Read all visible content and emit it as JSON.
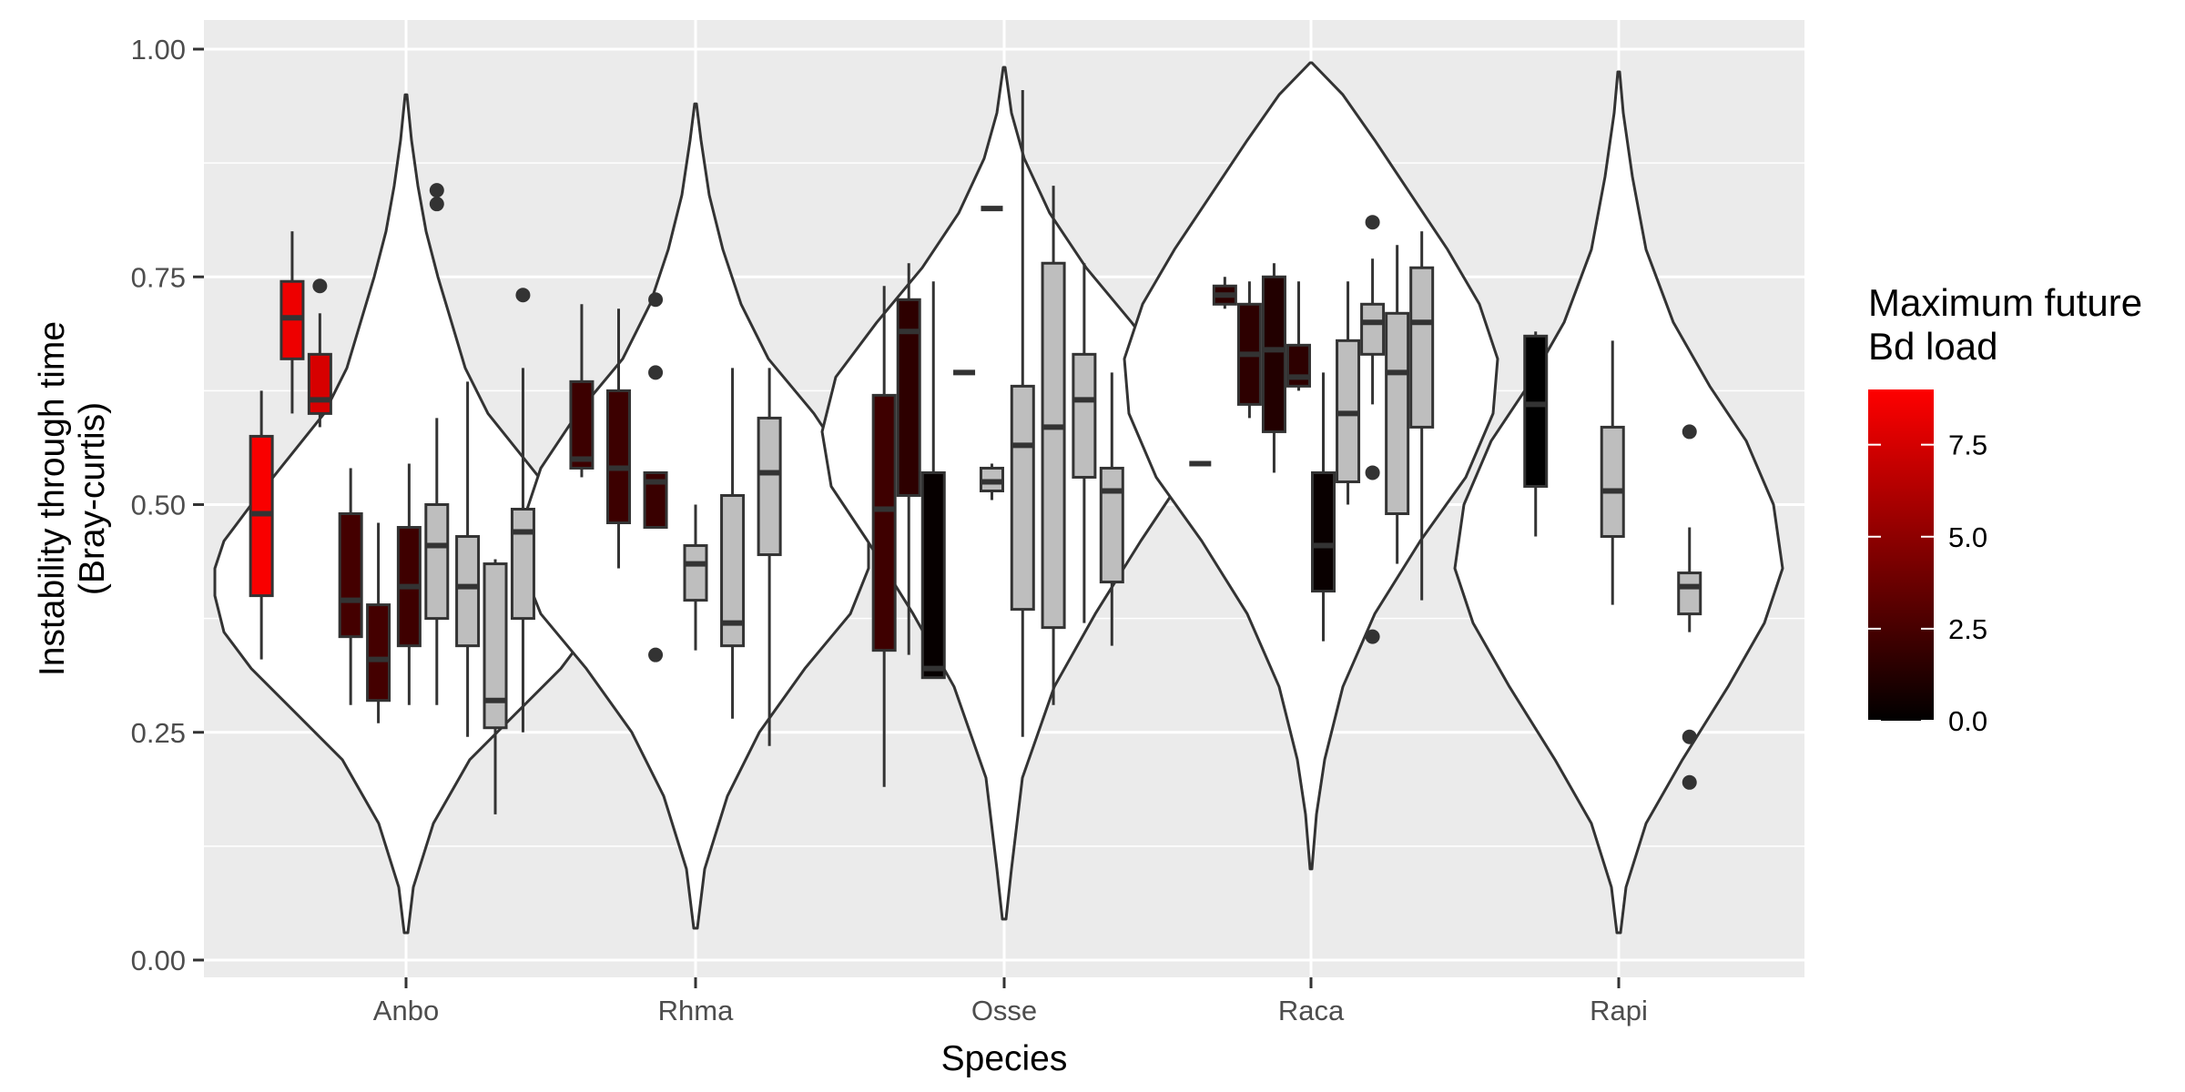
{
  "chart_data": {
    "type": "boxplot-violin",
    "xlabel": "Species",
    "ylabel_line1": "Instability through time",
    "ylabel_line2": "(Bray-curtis)",
    "ylim": [
      0,
      1
    ],
    "y_ticks": [
      "0.00",
      "0.25",
      "0.50",
      "0.75",
      "1.00"
    ],
    "y_tick_values": [
      0,
      0.25,
      0.5,
      0.75,
      1.0
    ],
    "categories": [
      "Anbo",
      "Rhma",
      "Osse",
      "Raca",
      "Rapi"
    ],
    "legend": {
      "title_line1": "Maximum future",
      "title_line2": "Bd load",
      "labels": [
        "7.5",
        "5.0",
        "2.5",
        "0.0"
      ],
      "label_values": [
        7.5,
        5.0,
        2.5,
        0.0
      ],
      "range": [
        0,
        9
      ],
      "color_low": "#000000",
      "color_high": "#ff0000"
    },
    "colors": {
      "panel": "#ebebeb",
      "grid": "#ffffff",
      "no_data_fill": "#bebebe",
      "line": "#333333"
    },
    "grid": true,
    "legend_position": "right",
    "violins": [
      {
        "category": "Anbo",
        "min": 0.03,
        "max": 0.95,
        "profile": [
          [
            0.03,
            0.002
          ],
          [
            0.08,
            0.008
          ],
          [
            0.15,
            0.03
          ],
          [
            0.22,
            0.07
          ],
          [
            0.27,
            0.12
          ],
          [
            0.32,
            0.17
          ],
          [
            0.36,
            0.2
          ],
          [
            0.4,
            0.21
          ],
          [
            0.43,
            0.21
          ],
          [
            0.46,
            0.2
          ],
          [
            0.5,
            0.17
          ],
          [
            0.55,
            0.13
          ],
          [
            0.6,
            0.09
          ],
          [
            0.65,
            0.065
          ],
          [
            0.7,
            0.05
          ],
          [
            0.75,
            0.035
          ],
          [
            0.8,
            0.022
          ],
          [
            0.85,
            0.013
          ],
          [
            0.9,
            0.006
          ],
          [
            0.95,
            0.001
          ]
        ]
      },
      {
        "category": "Rhma",
        "min": 0.035,
        "max": 0.94,
        "profile": [
          [
            0.035,
            0.002
          ],
          [
            0.1,
            0.01
          ],
          [
            0.18,
            0.035
          ],
          [
            0.25,
            0.07
          ],
          [
            0.32,
            0.12
          ],
          [
            0.38,
            0.17
          ],
          [
            0.43,
            0.19
          ],
          [
            0.48,
            0.19
          ],
          [
            0.54,
            0.17
          ],
          [
            0.6,
            0.13
          ],
          [
            0.66,
            0.08
          ],
          [
            0.72,
            0.05
          ],
          [
            0.78,
            0.03
          ],
          [
            0.84,
            0.015
          ],
          [
            0.9,
            0.006
          ],
          [
            0.94,
            0.001
          ]
        ]
      },
      {
        "category": "Osse",
        "min": 0.045,
        "max": 0.98,
        "profile": [
          [
            0.045,
            0.002
          ],
          [
            0.1,
            0.008
          ],
          [
            0.2,
            0.02
          ],
          [
            0.3,
            0.055
          ],
          [
            0.38,
            0.1
          ],
          [
            0.46,
            0.15
          ],
          [
            0.52,
            0.19
          ],
          [
            0.58,
            0.2
          ],
          [
            0.64,
            0.185
          ],
          [
            0.7,
            0.14
          ],
          [
            0.76,
            0.09
          ],
          [
            0.82,
            0.05
          ],
          [
            0.88,
            0.022
          ],
          [
            0.93,
            0.008
          ],
          [
            0.98,
            0.001
          ]
        ]
      },
      {
        "category": "Raca",
        "min": 0.1,
        "max": 0.985,
        "profile": [
          [
            0.1,
            0.001
          ],
          [
            0.16,
            0.006
          ],
          [
            0.22,
            0.015
          ],
          [
            0.3,
            0.035
          ],
          [
            0.38,
            0.07
          ],
          [
            0.46,
            0.12
          ],
          [
            0.53,
            0.17
          ],
          [
            0.6,
            0.2
          ],
          [
            0.66,
            0.205
          ],
          [
            0.72,
            0.185
          ],
          [
            0.78,
            0.15
          ],
          [
            0.84,
            0.11
          ],
          [
            0.9,
            0.07
          ],
          [
            0.95,
            0.035
          ],
          [
            0.985,
            0.001
          ]
        ]
      },
      {
        "category": "Rapi",
        "min": 0.03,
        "max": 0.975,
        "profile": [
          [
            0.03,
            0.002
          ],
          [
            0.08,
            0.008
          ],
          [
            0.15,
            0.03
          ],
          [
            0.22,
            0.07
          ],
          [
            0.3,
            0.12
          ],
          [
            0.37,
            0.16
          ],
          [
            0.43,
            0.18
          ],
          [
            0.5,
            0.17
          ],
          [
            0.57,
            0.14
          ],
          [
            0.63,
            0.1
          ],
          [
            0.7,
            0.06
          ],
          [
            0.78,
            0.03
          ],
          [
            0.86,
            0.015
          ],
          [
            0.93,
            0.005
          ],
          [
            0.975,
            0.001
          ]
        ]
      }
    ],
    "boxes": [
      {
        "category": "Anbo",
        "offset": -0.47,
        "load": 8.8,
        "min": 0.33,
        "q1": 0.4,
        "median": 0.49,
        "q3": 0.575,
        "max": 0.625,
        "outliers": []
      },
      {
        "category": "Anbo",
        "offset": -0.37,
        "load": 8.4,
        "min": 0.6,
        "q1": 0.66,
        "median": 0.705,
        "q3": 0.745,
        "max": 0.8,
        "outliers": []
      },
      {
        "category": "Anbo",
        "offset": -0.28,
        "load": 7.6,
        "min": 0.585,
        "q1": 0.6,
        "median": 0.615,
        "q3": 0.665,
        "max": 0.71,
        "outliers": [
          0.74
        ]
      },
      {
        "category": "Anbo",
        "offset": -0.18,
        "load": 2.4,
        "min": 0.28,
        "q1": 0.355,
        "median": 0.395,
        "q3": 0.49,
        "max": 0.54,
        "outliers": []
      },
      {
        "category": "Anbo",
        "offset": -0.09,
        "load": 2.4,
        "min": 0.26,
        "q1": 0.285,
        "median": 0.33,
        "q3": 0.39,
        "max": 0.48,
        "outliers": []
      },
      {
        "category": "Anbo",
        "offset": 0.01,
        "load": 2.2,
        "min": 0.28,
        "q1": 0.345,
        "median": 0.41,
        "q3": 0.475,
        "max": 0.545,
        "outliers": []
      },
      {
        "category": "Anbo",
        "offset": 0.1,
        "load": null,
        "min": 0.28,
        "q1": 0.375,
        "median": 0.455,
        "q3": 0.5,
        "max": 0.595,
        "outliers": [
          0.845,
          0.83
        ]
      },
      {
        "category": "Anbo",
        "offset": 0.2,
        "load": null,
        "min": 0.245,
        "q1": 0.345,
        "median": 0.41,
        "q3": 0.465,
        "max": 0.635,
        "outliers": []
      },
      {
        "category": "Anbo",
        "offset": 0.29,
        "load": null,
        "min": 0.16,
        "q1": 0.255,
        "median": 0.285,
        "q3": 0.435,
        "max": 0.44,
        "outliers": []
      },
      {
        "category": "Anbo",
        "offset": 0.38,
        "load": null,
        "min": 0.25,
        "q1": 0.375,
        "median": 0.47,
        "q3": 0.495,
        "max": 0.65,
        "outliers": [
          0.73
        ]
      },
      {
        "category": "Rhma",
        "offset": -0.37,
        "load": 2.1,
        "min": 0.53,
        "q1": 0.54,
        "median": 0.55,
        "q3": 0.635,
        "max": 0.72,
        "outliers": []
      },
      {
        "category": "Rhma",
        "offset": -0.25,
        "load": 2.1,
        "min": 0.43,
        "q1": 0.48,
        "median": 0.54,
        "q3": 0.625,
        "max": 0.715,
        "outliers": []
      },
      {
        "category": "Rhma",
        "offset": -0.13,
        "load": 2.0,
        "min": 0.475,
        "q1": 0.475,
        "median": 0.525,
        "q3": 0.535,
        "max": 0.535,
        "outliers": [
          0.335,
          0.725,
          0.645
        ]
      },
      {
        "category": "Rhma",
        "offset": 0.0,
        "load": null,
        "min": 0.34,
        "q1": 0.395,
        "median": 0.435,
        "q3": 0.455,
        "max": 0.5,
        "outliers": []
      },
      {
        "category": "Rhma",
        "offset": 0.12,
        "load": null,
        "min": 0.265,
        "q1": 0.345,
        "median": 0.37,
        "q3": 0.51,
        "max": 0.65,
        "outliers": []
      },
      {
        "category": "Rhma",
        "offset": 0.24,
        "load": null,
        "min": 0.235,
        "q1": 0.445,
        "median": 0.535,
        "q3": 0.595,
        "max": 0.65,
        "outliers": []
      },
      {
        "category": "Osse",
        "offset": -0.39,
        "load": 2.2,
        "min": 0.19,
        "q1": 0.34,
        "median": 0.495,
        "q3": 0.62,
        "max": 0.74,
        "outliers": []
      },
      {
        "category": "Osse",
        "offset": -0.31,
        "load": 1.6,
        "min": 0.335,
        "q1": 0.51,
        "median": 0.69,
        "q3": 0.725,
        "max": 0.765,
        "outliers": []
      },
      {
        "category": "Osse",
        "offset": -0.23,
        "load": 0.2,
        "min": 0.31,
        "q1": 0.31,
        "median": 0.32,
        "q3": 0.535,
        "max": 0.745,
        "outliers": []
      },
      {
        "category": "Osse",
        "offset": -0.13,
        "load": null,
        "min": 0.645,
        "q1": 0.645,
        "median": 0.645,
        "q3": 0.645,
        "max": 0.645,
        "outliers": []
      },
      {
        "category": "Osse",
        "offset": -0.04,
        "load": null,
        "min": 0.825,
        "q1": 0.825,
        "median": 0.825,
        "q3": 0.825,
        "max": 0.825,
        "outliers": []
      },
      {
        "category": "Osse",
        "offset": -0.04,
        "load": null,
        "min": 0.505,
        "q1": 0.515,
        "median": 0.525,
        "q3": 0.54,
        "max": 0.545,
        "outliers": []
      },
      {
        "category": "Osse",
        "offset": 0.06,
        "load": null,
        "min": 0.245,
        "q1": 0.385,
        "median": 0.565,
        "q3": 0.63,
        "max": 0.955,
        "outliers": []
      },
      {
        "category": "Osse",
        "offset": 0.16,
        "load": null,
        "min": 0.28,
        "q1": 0.365,
        "median": 0.585,
        "q3": 0.765,
        "max": 0.85,
        "outliers": []
      },
      {
        "category": "Osse",
        "offset": 0.26,
        "load": null,
        "min": 0.37,
        "q1": 0.53,
        "median": 0.615,
        "q3": 0.665,
        "max": 0.765,
        "outliers": []
      },
      {
        "category": "Osse",
        "offset": 0.35,
        "load": null,
        "min": 0.345,
        "q1": 0.415,
        "median": 0.515,
        "q3": 0.54,
        "max": 0.645,
        "outliers": []
      },
      {
        "category": "Raca",
        "offset": -0.36,
        "load": null,
        "min": 0.545,
        "q1": 0.545,
        "median": 0.545,
        "q3": 0.545,
        "max": 0.545,
        "outliers": []
      },
      {
        "category": "Raca",
        "offset": -0.28,
        "load": 1.6,
        "min": 0.715,
        "q1": 0.72,
        "median": 0.73,
        "q3": 0.74,
        "max": 0.75,
        "outliers": []
      },
      {
        "category": "Raca",
        "offset": -0.2,
        "load": 1.6,
        "min": 0.595,
        "q1": 0.61,
        "median": 0.665,
        "q3": 0.72,
        "max": 0.745,
        "outliers": []
      },
      {
        "category": "Raca",
        "offset": -0.12,
        "load": 1.2,
        "min": 0.535,
        "q1": 0.58,
        "median": 0.67,
        "q3": 0.75,
        "max": 0.765,
        "outliers": []
      },
      {
        "category": "Raca",
        "offset": -0.04,
        "load": 1.6,
        "min": 0.625,
        "q1": 0.63,
        "median": 0.64,
        "q3": 0.675,
        "max": 0.745,
        "outliers": []
      },
      {
        "category": "Raca",
        "offset": 0.04,
        "load": 0.3,
        "min": 0.35,
        "q1": 0.405,
        "median": 0.455,
        "q3": 0.535,
        "max": 0.645,
        "outliers": []
      },
      {
        "category": "Raca",
        "offset": 0.12,
        "load": null,
        "min": 0.5,
        "q1": 0.525,
        "median": 0.6,
        "q3": 0.68,
        "max": 0.745,
        "outliers": []
      },
      {
        "category": "Raca",
        "offset": 0.2,
        "load": null,
        "min": 0.61,
        "q1": 0.665,
        "median": 0.7,
        "q3": 0.72,
        "max": 0.77,
        "outliers": [
          0.81,
          0.535,
          0.355
        ]
      },
      {
        "category": "Raca",
        "offset": 0.28,
        "load": null,
        "min": 0.435,
        "q1": 0.49,
        "median": 0.645,
        "q3": 0.71,
        "max": 0.785,
        "outliers": []
      },
      {
        "category": "Raca",
        "offset": 0.36,
        "load": null,
        "min": 0.395,
        "q1": 0.585,
        "median": 0.7,
        "q3": 0.76,
        "max": 0.8,
        "outliers": []
      },
      {
        "category": "Rapi",
        "offset": -0.27,
        "load": 0.0,
        "min": 0.465,
        "q1": 0.52,
        "median": 0.61,
        "q3": 0.685,
        "max": 0.69,
        "outliers": []
      },
      {
        "category": "Rapi",
        "offset": -0.02,
        "load": null,
        "min": 0.39,
        "q1": 0.465,
        "median": 0.515,
        "q3": 0.585,
        "max": 0.68,
        "outliers": []
      },
      {
        "category": "Rapi",
        "offset": 0.23,
        "load": null,
        "min": 0.36,
        "q1": 0.38,
        "median": 0.41,
        "q3": 0.425,
        "max": 0.475,
        "outliers": [
          0.58,
          0.245,
          0.195
        ]
      }
    ]
  }
}
